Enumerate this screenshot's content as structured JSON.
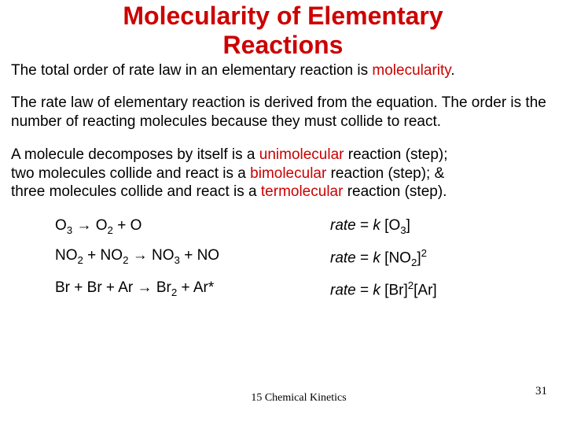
{
  "colors": {
    "title": "#cc0000",
    "body": "#000000",
    "highlight": "#cc0000",
    "background": "#ffffff"
  },
  "title": {
    "line1": "Molecularity of Elementary",
    "line2": "Reactions",
    "fontsize": 32
  },
  "para1": {
    "t1": "The total order of rate law in an elementary reaction is ",
    "hl": "molecularity",
    "t2": "."
  },
  "para2": "The rate law of elementary reaction is derived from the equation. The order is the number of reacting molecules because they must collide to react.",
  "para3": {
    "a1": "A molecule decomposes by itself is a ",
    "a_hl": "unimolecular",
    "a2": " reaction (step);",
    "b1": "two molecules collide and react is a ",
    "b_hl": "bimolecular",
    "b2": " reaction (step); &",
    "c1": "three molecules collide and react is a ",
    "c_hl": "termolecular",
    "c2": " reaction (step)."
  },
  "eq1": {
    "l_a": "O",
    "l_a_sub": "3",
    "l_arrow": " → ",
    "l_b": "O",
    "l_b_sub": "2",
    "l_c": " + O",
    "r_pre": "rate",
    "r_mid": " = ",
    "r_k": "k",
    "r_post": " [O",
    "r_sub": "3",
    "r_close": "]"
  },
  "eq2": {
    "l_a": "NO",
    "l_a_sub": "2",
    "l_plus": " + NO",
    "l_b_sub": "2",
    "l_arrow": " → ",
    "l_c": "NO",
    "l_c_sub": "3",
    "l_d": " + NO",
    "r_pre": "rate",
    "r_mid": " = ",
    "r_k": "k",
    "r_post": " [NO",
    "r_sub": "2",
    "r_close": "]",
    "r_sup": "2"
  },
  "eq3": {
    "l": "Br + Br + Ar →  Br",
    "l_sub": "2",
    "l_end": " + Ar*",
    "r_pre": "rate",
    "r_mid": " = ",
    "r_k": "k",
    "r_post": " [Br]",
    "r_sup1": "2",
    "r_post2": "[Ar]"
  },
  "footer": "15 Chemical Kinetics",
  "page": "31"
}
